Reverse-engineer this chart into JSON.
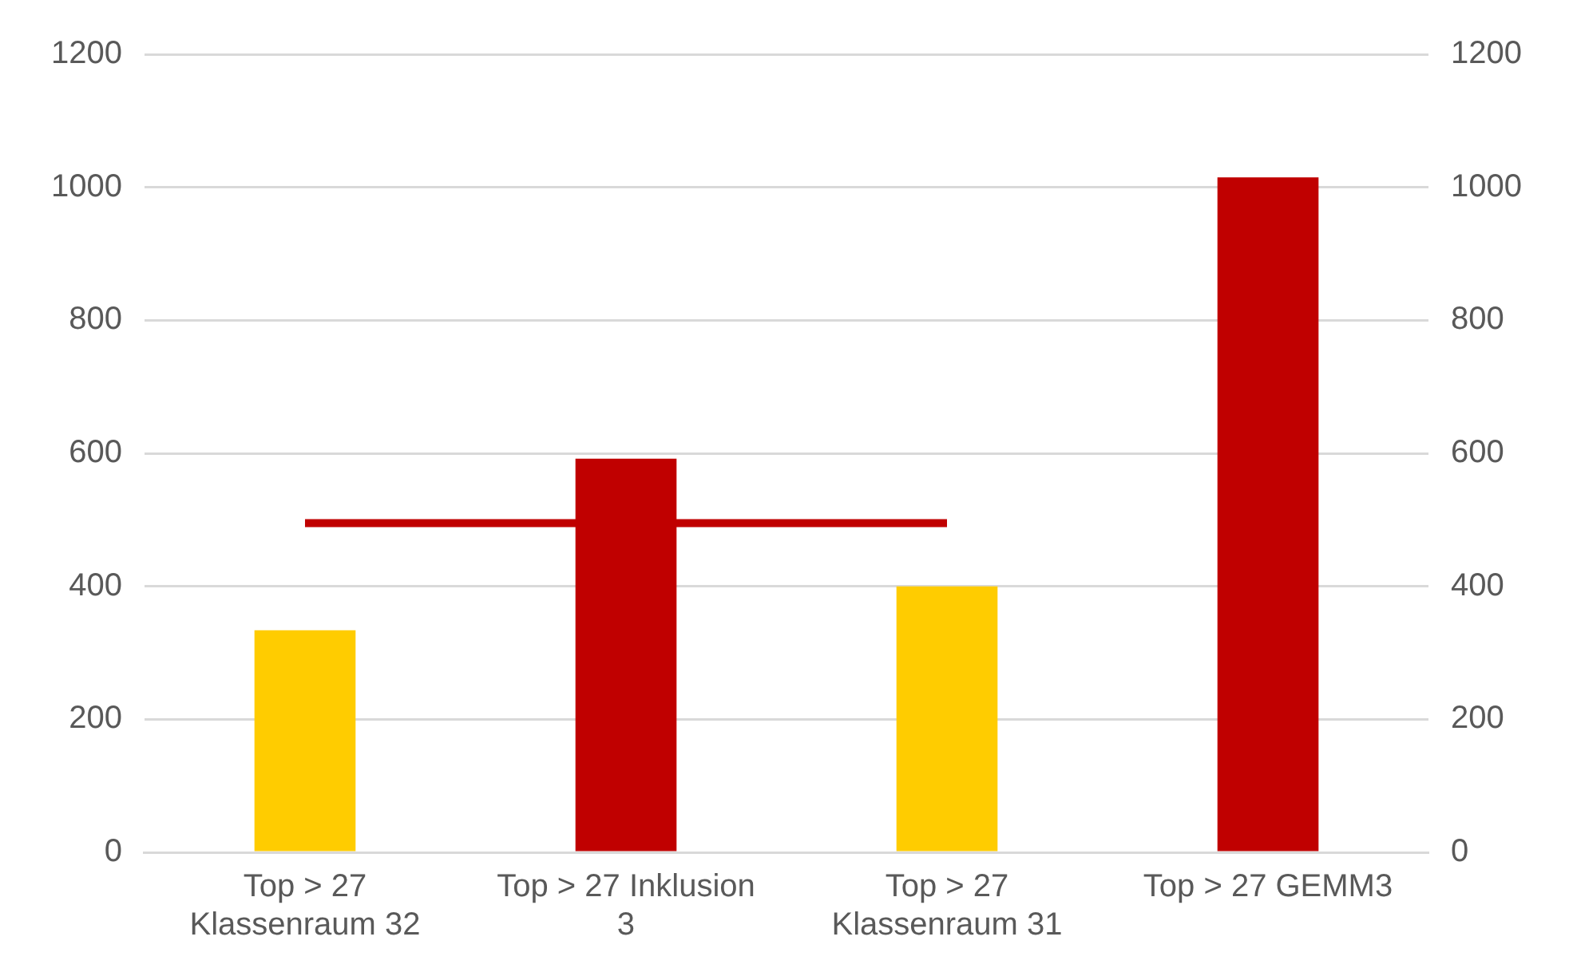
{
  "chart_data": {
    "type": "bar",
    "categories": [
      "Top > 27 Klassenraum 32",
      "Top > 27 Inklusion 3",
      "Top > 27 Klassenraum 31",
      "Top > 27 GEMM3"
    ],
    "series": [
      {
        "values": [
          334,
          592,
          400,
          1015
        ],
        "colors": [
          "#ffcc00",
          "#c00000",
          "#ffcc00",
          "#c00000"
        ]
      },
      {
        "type": "line",
        "color": "#c00000",
        "values": [
          495,
          495,
          495,
          null
        ],
        "marker": "none"
      }
    ],
    "ylim": [
      0,
      1200
    ],
    "yticks": [
      0,
      200,
      400,
      600,
      800,
      1000,
      1200
    ],
    "y2lim": [
      0,
      1200
    ],
    "y2ticks": [
      0,
      200,
      400,
      600,
      800,
      1000,
      1200
    ],
    "grid": "y",
    "legend": false
  }
}
